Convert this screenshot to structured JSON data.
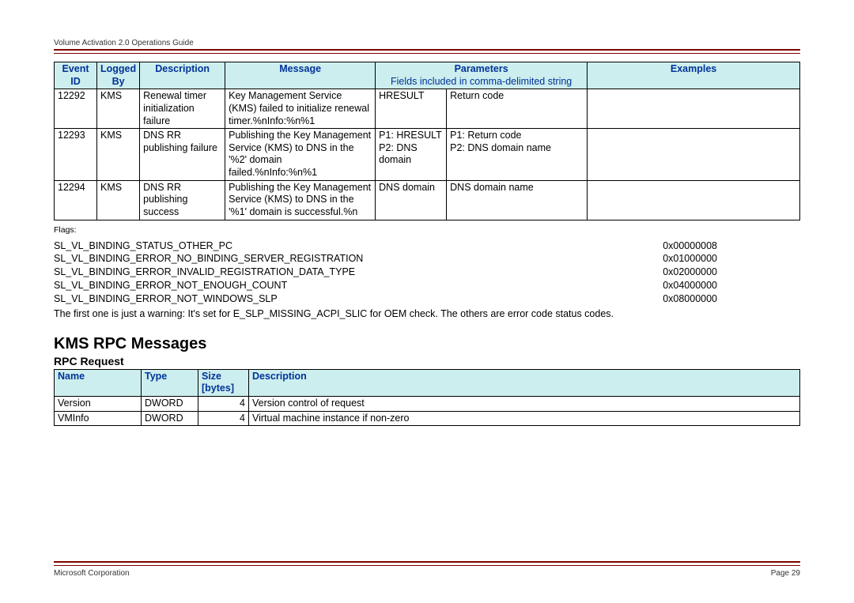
{
  "header": {
    "title": "Volume Activation 2.0 Operations Guide"
  },
  "event_table": {
    "headers": {
      "event_id": "Event ID",
      "logged_by": "Logged By",
      "description": "Description",
      "message": "Message",
      "parameters": "Parameters",
      "parameters_sub": "Fields included in comma-delimited string",
      "examples": "Examples"
    },
    "header_bg": "#cdeeee",
    "header_color": "#003399",
    "rows": [
      {
        "id": "12292",
        "by": "KMS",
        "desc": "Renewal timer initialization failure",
        "msg": "Key Management Service (KMS) failed to initialize renewal timer.%nInfo:%n%1",
        "p1": "HRESULT",
        "p2": "Return code",
        "ex": ""
      },
      {
        "id": "12293",
        "by": "KMS",
        "desc": "DNS RR publishing failure",
        "msg": "Publishing the Key Management Service (KMS) to DNS in the '%2' domain failed.%nInfo:%n%1",
        "p1": "P1: HRESULT\nP2: DNS domain",
        "p2": "P1: Return code\nP2: DNS domain name",
        "ex": ""
      },
      {
        "id": "12294",
        "by": "KMS",
        "desc": "DNS RR publishing success",
        "msg": "Publishing the Key Management Service (KMS) to DNS in the '%1' domain is successful.%n",
        "p1": "DNS domain",
        "p2": "DNS domain name",
        "ex": ""
      }
    ]
  },
  "flags": {
    "label": "Flags:",
    "items": [
      {
        "name": "SL_VL_BINDING_STATUS_OTHER_PC",
        "value": "0x00000008"
      },
      {
        "name": "SL_VL_BINDING_ERROR_NO_BINDING_SERVER_REGISTRATION",
        "value": "0x01000000"
      },
      {
        "name": "SL_VL_BINDING_ERROR_INVALID_REGISTRATION_DATA_TYPE",
        "value": "0x02000000"
      },
      {
        "name": "SL_VL_BINDING_ERROR_NOT_ENOUGH_COUNT",
        "value": "0x04000000"
      },
      {
        "name": "SL_VL_BINDING_ERROR_NOT_WINDOWS_SLP",
        "value": "0x08000000"
      }
    ],
    "note": "The first one is just a warning: It's set for E_SLP_MISSING_ACPI_SLIC for OEM check. The others are error code status codes."
  },
  "rpc": {
    "heading": "KMS RPC Messages",
    "subheading": "RPC Request",
    "headers": {
      "name": "Name",
      "type": "Type",
      "size": "Size [bytes]",
      "description": "Description"
    },
    "rows": [
      {
        "name": "Version",
        "type": "DWORD",
        "size": "4",
        "desc": "Version control of request"
      },
      {
        "name": "VMInfo",
        "type": "DWORD",
        "size": "4",
        "desc": "Virtual machine instance if non-zero"
      }
    ]
  },
  "footer": {
    "left": "Microsoft Corporation",
    "right": "Page 29"
  },
  "colors": {
    "rule": "#800000"
  }
}
